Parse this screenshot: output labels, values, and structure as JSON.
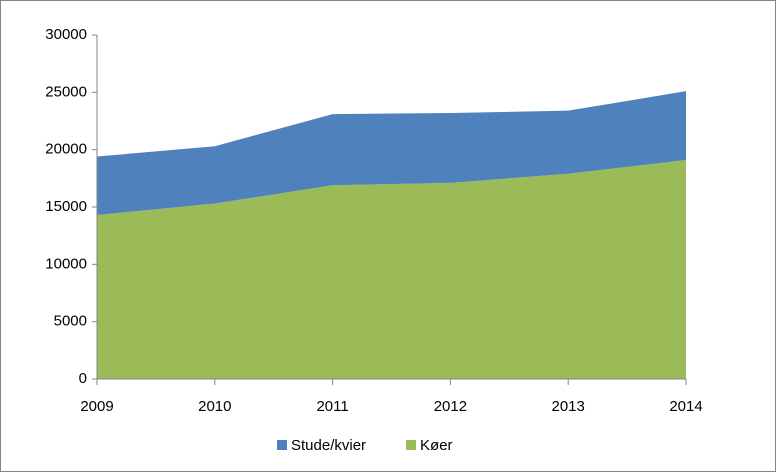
{
  "chart_data": {
    "type": "area",
    "stacked": true,
    "categories": [
      "2009",
      "2010",
      "2011",
      "2012",
      "2013",
      "2014"
    ],
    "series": [
      {
        "name": "Stude/kvier",
        "color": "#4f81bd",
        "values": [
          5100,
          5000,
          6200,
          6100,
          5500,
          6000
        ]
      },
      {
        "name": "Køer",
        "color": "#9bbb59",
        "values": [
          14300,
          15300,
          16900,
          17100,
          17900,
          19100
        ]
      }
    ],
    "ylim": [
      0,
      30000
    ],
    "yticks": [
      0,
      5000,
      10000,
      15000,
      20000,
      25000,
      30000
    ],
    "grid": false,
    "legend": "bottom"
  }
}
